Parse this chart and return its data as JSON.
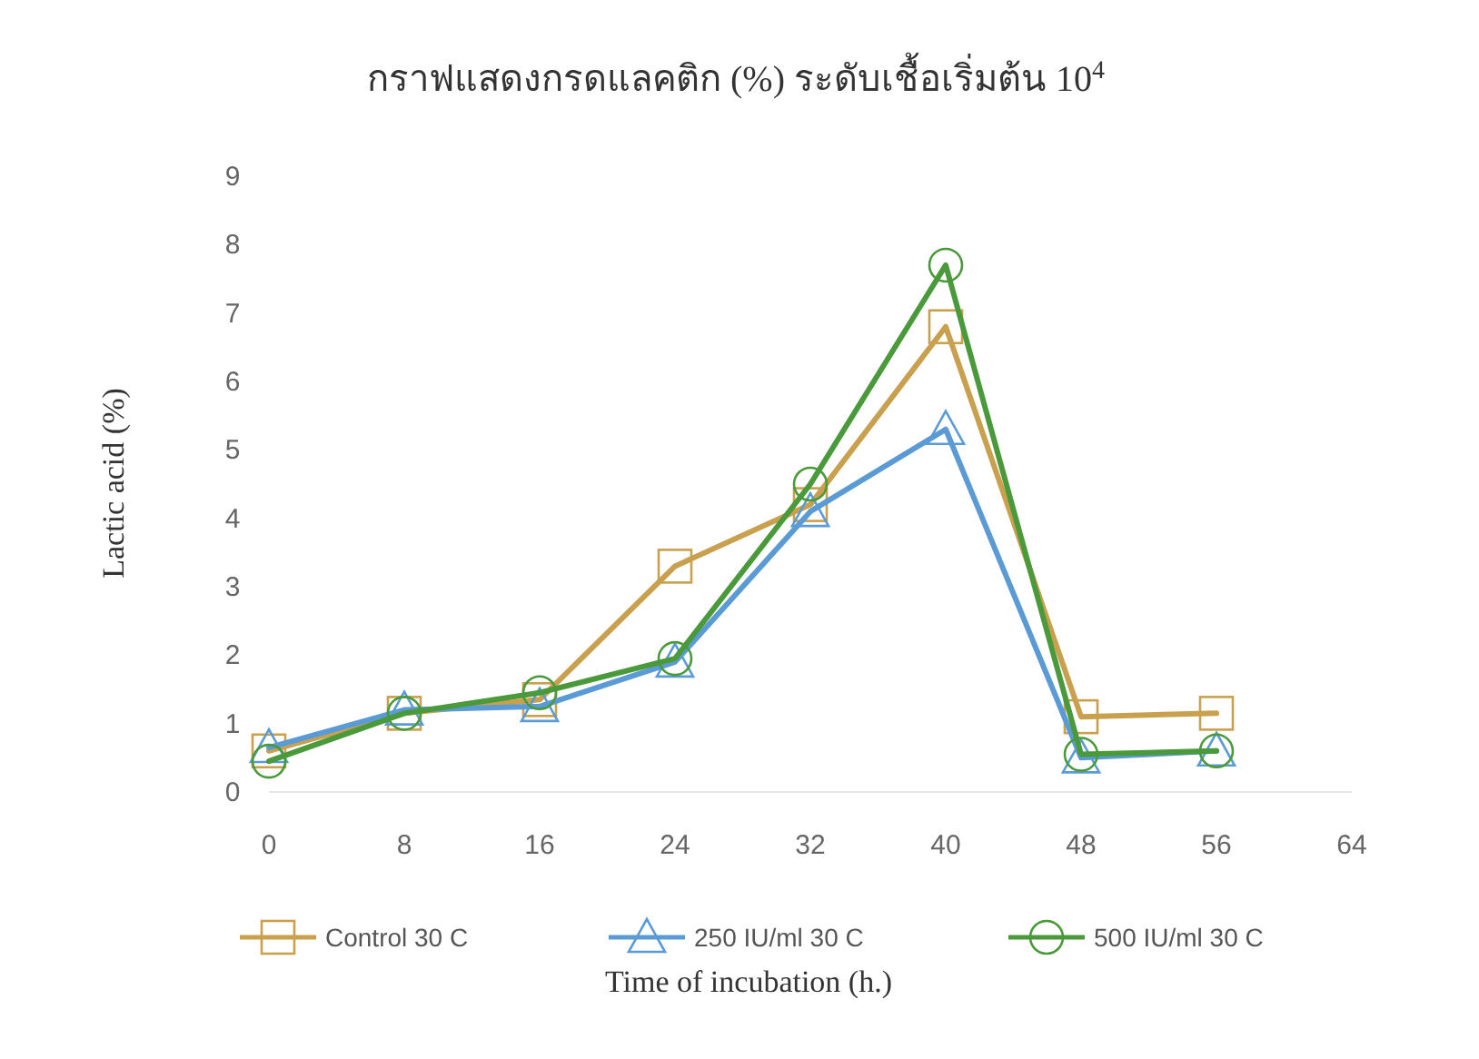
{
  "chart_data": {
    "type": "line",
    "title": "กราฟแสดงกรดแลคติก (%) ระดับเชื้อเริ่มต้น 10$^{4}$",
    "xlabel": "Time of incubation (h.)",
    "ylabel": "Lactic acid (%)",
    "x": [
      0,
      8,
      16,
      24,
      32,
      40,
      48,
      56
    ],
    "series": [
      {
        "name": "Control 30 C",
        "color": "#c9a04e",
        "marker": "square",
        "values": [
          0.6,
          1.15,
          1.35,
          3.3,
          4.2,
          6.8,
          1.1,
          1.15
        ]
      },
      {
        "name": "250 IU/ml 30 C",
        "color": "#5b9bd5",
        "marker": "triangle",
        "values": [
          0.65,
          1.2,
          1.25,
          1.9,
          4.1,
          5.3,
          0.5,
          0.6
        ]
      },
      {
        "name": "500 IU/ml 30 C",
        "color": "#4a9a3c",
        "marker": "circle",
        "values": [
          0.45,
          1.15,
          1.45,
          1.95,
          4.5,
          7.7,
          0.55,
          0.6
        ]
      }
    ],
    "xlim": [
      0,
      64
    ],
    "xticks": [
      0,
      8,
      16,
      24,
      32,
      40,
      48,
      56,
      64
    ],
    "ylim": [
      0,
      9
    ],
    "yticks": [
      0,
      1,
      2,
      3,
      4,
      5,
      6,
      7,
      8,
      9
    ],
    "grid": false,
    "legend": "bottom"
  }
}
